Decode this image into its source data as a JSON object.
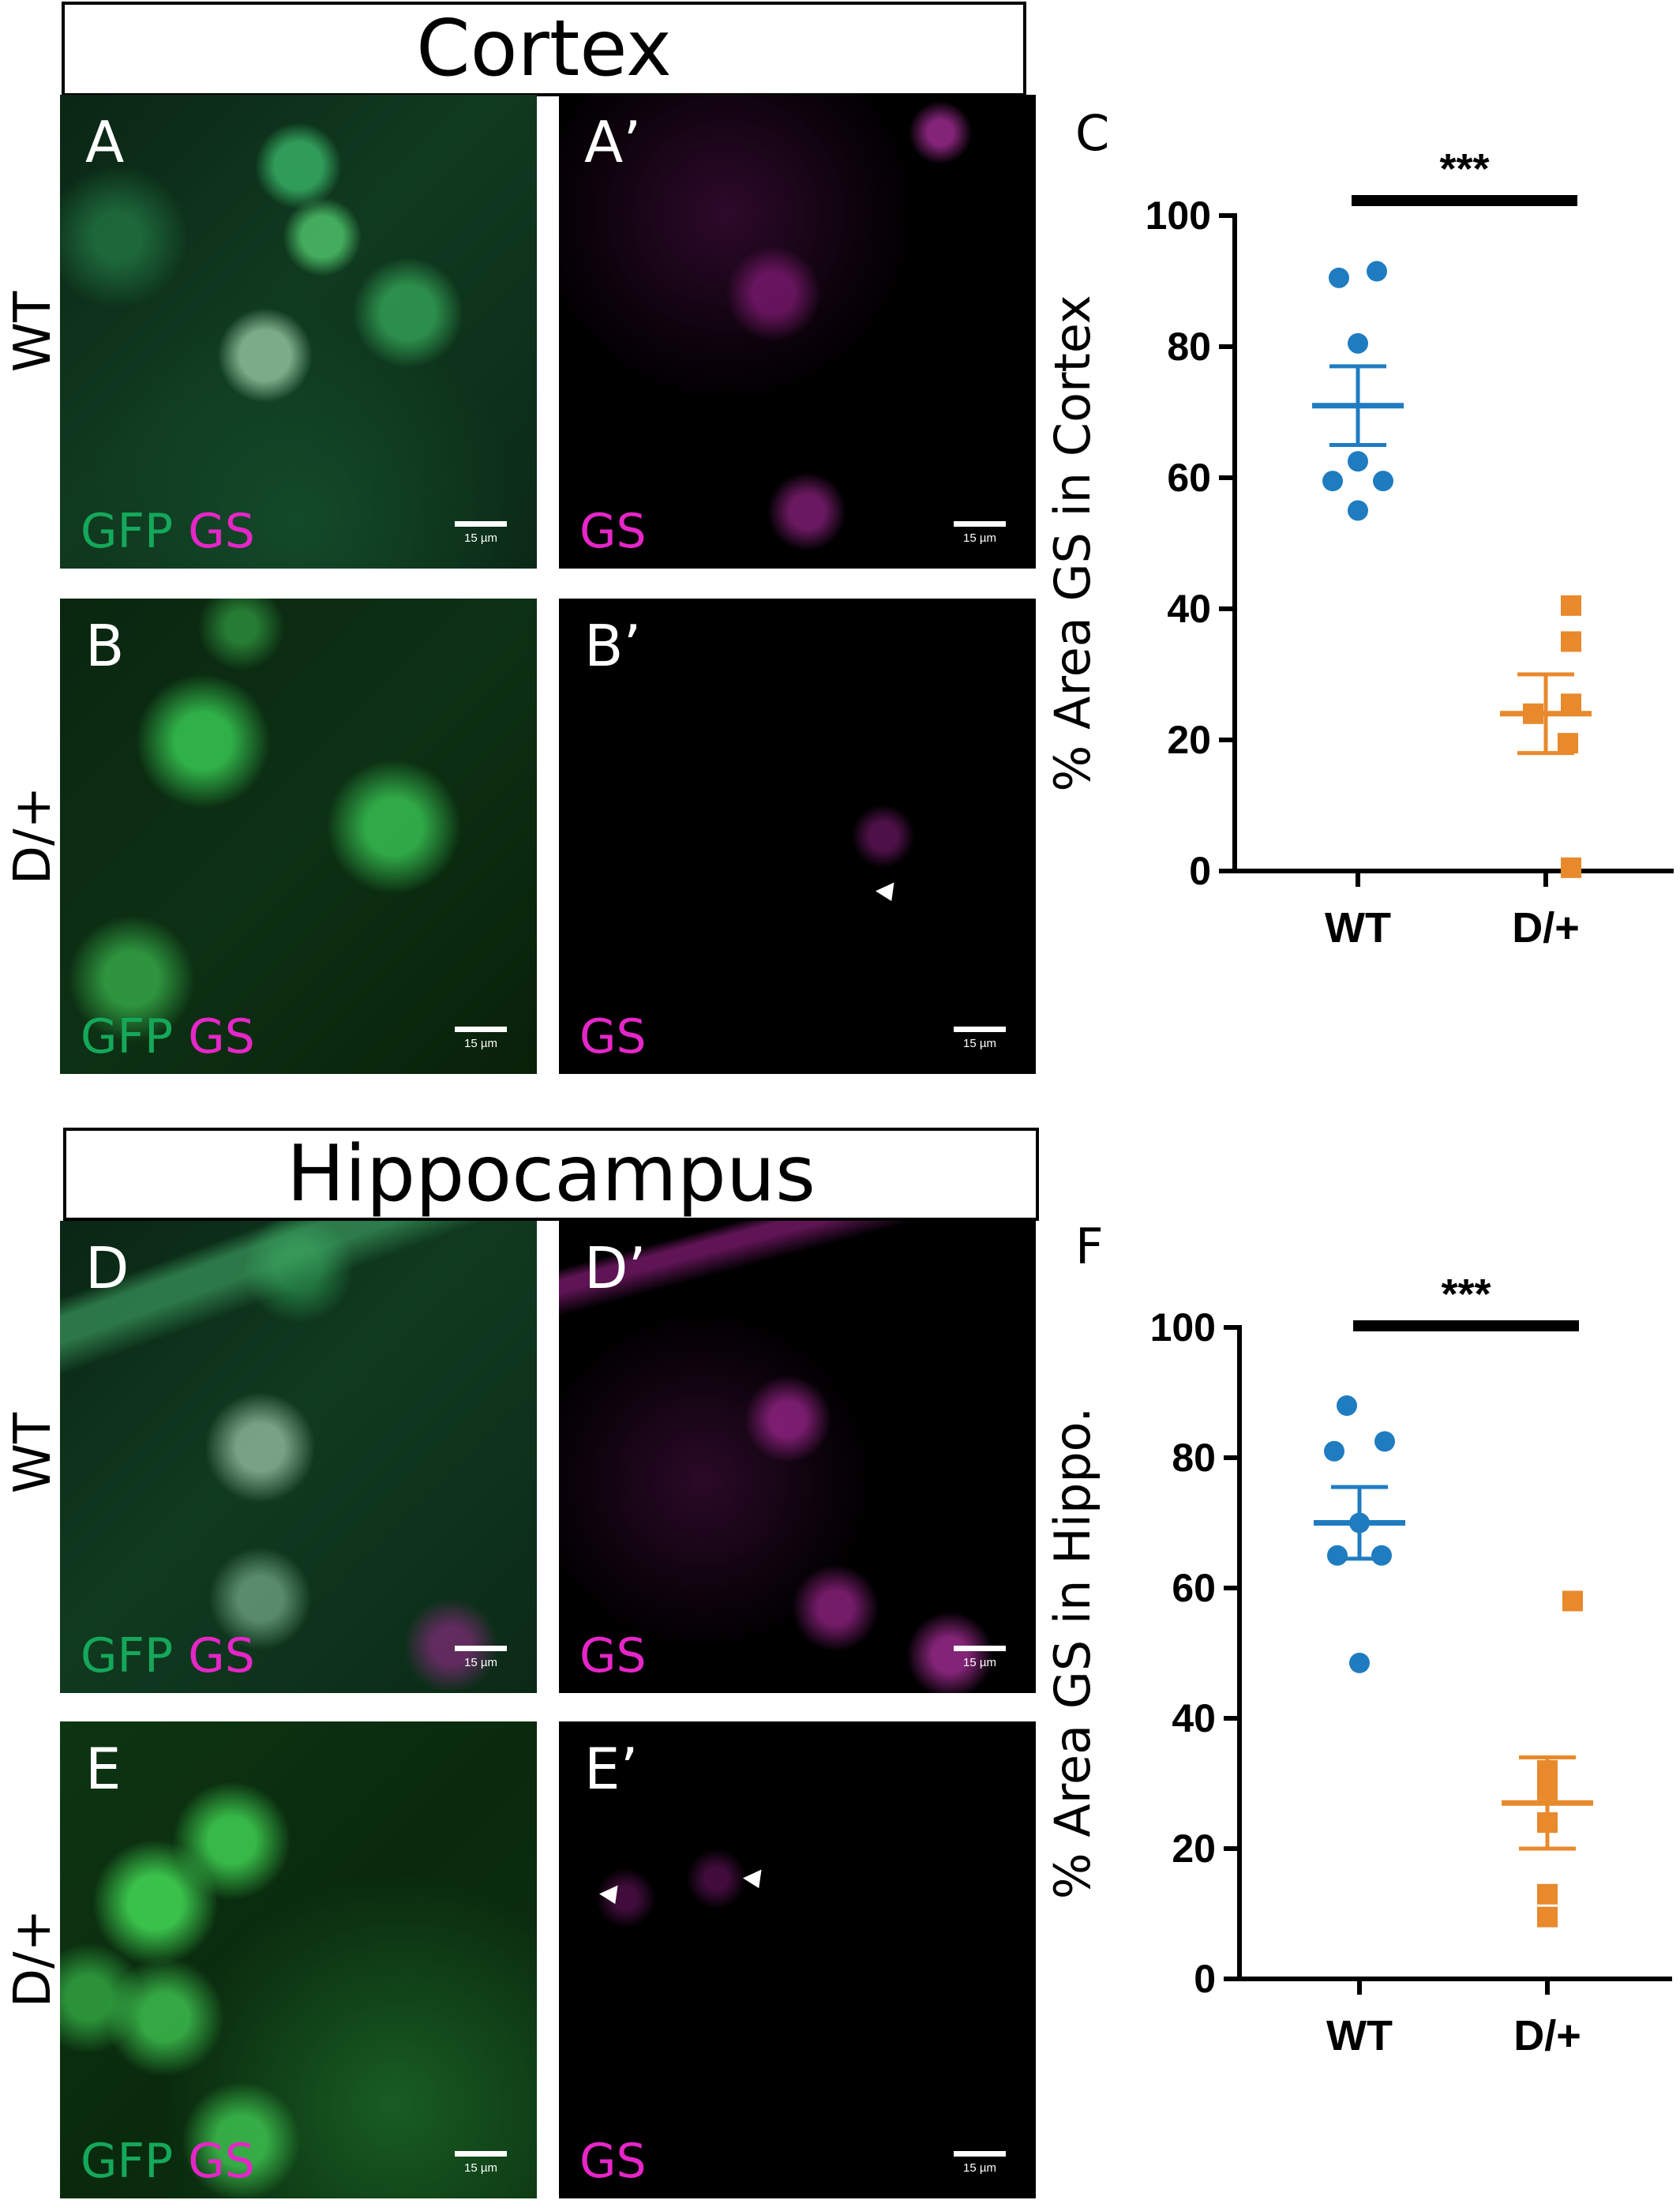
{
  "figure": {
    "sections": [
      {
        "id": "cortex",
        "title": "Cortex"
      },
      {
        "id": "hippocampus",
        "title": "Hippocampus"
      }
    ],
    "row_labels": {
      "cortex_wt": "WT",
      "cortex_dplus": "D/+",
      "hippo_wt": "WT",
      "hippo_dplus": "D/+"
    },
    "panels": {
      "A": {
        "letter": "A",
        "stain_gfp": "GFP",
        "stain_gs": "GS",
        "scale": "15 µm"
      },
      "A2": {
        "letter": "A’",
        "stain_gfp": "",
        "stain_gs": "GS",
        "scale": "15 µm"
      },
      "B": {
        "letter": "B",
        "stain_gfp": "GFP",
        "stain_gs": "GS",
        "scale": "15 µm"
      },
      "B2": {
        "letter": "B’",
        "stain_gfp": "",
        "stain_gs": "GS",
        "scale": "15 µm"
      },
      "D": {
        "letter": "D",
        "stain_gfp": "GFP",
        "stain_gs": "GS",
        "scale": "15 µm"
      },
      "D2": {
        "letter": "D’",
        "stain_gfp": "",
        "stain_gs": "GS",
        "scale": "15 µm"
      },
      "E": {
        "letter": "E",
        "stain_gfp": "GFP",
        "stain_gs": "GS",
        "scale": "15 µm"
      },
      "E2": {
        "letter": "E’",
        "stain_gfp": "",
        "stain_gs": "GS",
        "scale": "15 µm"
      }
    },
    "colors": {
      "gfp": "#15a85a",
      "gs": "#e626c8",
      "wt": "#1f7cc1",
      "dplus": "#e8892c"
    }
  },
  "chart_data": [
    {
      "type": "scatter",
      "panel": "C",
      "ylabel": "% Area GS  in Cortex",
      "ylim": [
        0,
        100
      ],
      "yticks": [
        "0",
        "20",
        "40",
        "60",
        "80",
        "100"
      ],
      "categories": [
        "WT",
        "D/+"
      ],
      "significance": "***",
      "series": [
        {
          "category": "WT",
          "marker": "circle",
          "color": "#1f7cc1",
          "points": [
            [
              -0.3,
              90.5
            ],
            [
              0.3,
              91.5
            ],
            [
              0,
              80.5
            ],
            [
              -0.4,
              59.5
            ],
            [
              0.4,
              59.5
            ],
            [
              0,
              62.5
            ],
            [
              0,
              55
            ]
          ],
          "mean": 71,
          "sem": 6
        },
        {
          "category": "D/+",
          "marker": "square",
          "color": "#e8892c",
          "points": [
            [
              0.4,
              40.5
            ],
            [
              0.4,
              35
            ],
            [
              -0.2,
              24
            ],
            [
              0.4,
              25.5
            ],
            [
              0.35,
              19.5
            ],
            [
              0.4,
              0.5
            ]
          ],
          "mean": 24,
          "sem": 6
        }
      ]
    },
    {
      "type": "scatter",
      "panel": "F",
      "ylabel": "% Area GS in Hippo.",
      "ylim": [
        0,
        100
      ],
      "yticks": [
        "0",
        "20",
        "40",
        "60",
        "80",
        "100"
      ],
      "categories": [
        "WT",
        "D/+"
      ],
      "significance": "***",
      "series": [
        {
          "category": "WT",
          "marker": "circle",
          "color": "#1f7cc1",
          "points": [
            [
              -0.2,
              88
            ],
            [
              -0.4,
              81
            ],
            [
              0.4,
              82.5
            ],
            [
              0,
              70
            ],
            [
              -0.35,
              65
            ],
            [
              0.35,
              65
            ],
            [
              0,
              48.5
            ]
          ],
          "mean": 70,
          "sem": 5.5
        },
        {
          "category": "D/+",
          "marker": "square",
          "color": "#e8892c",
          "points": [
            [
              0.4,
              58
            ],
            [
              0,
              32
            ],
            [
              0,
              29
            ],
            [
              0,
              24
            ],
            [
              0,
              13
            ],
            [
              0,
              9.5
            ]
          ],
          "mean": 27,
          "sem": 7
        }
      ]
    }
  ]
}
